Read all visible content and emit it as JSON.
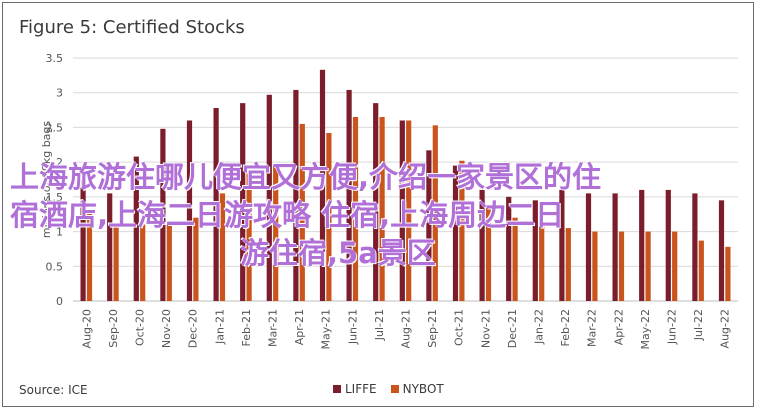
{
  "title": "Figure 5: Certified Stocks",
  "source": "Source: ICE",
  "overlay_text": {
    "line1": "上海旅游住哪儿便宜又方便,介绍一家景区的住",
    "line2": "宿酒店,上海二日游攻略 住宿,上海周边二日",
    "line3": "游住宿,5a景区"
  },
  "colors": {
    "LIFFE": "#7b1d2b",
    "NYBOT": "#c9541c",
    "overlay": "#b070d8"
  },
  "chart_data": {
    "type": "bar",
    "title": "Figure 5: Certified Stocks",
    "ylabel": "millions of 60kg bags",
    "ylim": [
      0,
      3.5
    ],
    "yticks": [
      0,
      0.5,
      1,
      1.5,
      2,
      2.5,
      3,
      3.5
    ],
    "categories": [
      "Aug-20",
      "Sep-20",
      "Oct-20",
      "Nov-20",
      "Dec-20",
      "Jan-21",
      "Feb-21",
      "Mar-21",
      "Apr-21",
      "May-21",
      "Jun-21",
      "Jul-21",
      "Aug-21",
      "Sep-21",
      "Oct-21",
      "Nov-21",
      "Dec-21",
      "Jan-22",
      "Feb-22",
      "Mar-22",
      "Apr-22",
      "May-22",
      "Jun-22",
      "Jul-22",
      "Aug-22"
    ],
    "series": [
      {
        "name": "LIFFE",
        "values": [
          1.75,
          1.55,
          2.08,
          2.48,
          2.6,
          2.78,
          2.85,
          2.97,
          3.04,
          3.33,
          3.04,
          2.85,
          2.6,
          2.17,
          1.95,
          1.6,
          1.5,
          1.45,
          1.6,
          1.55,
          1.55,
          1.6,
          1.6,
          1.55,
          1.45
        ]
      },
      {
        "name": "NYBOT",
        "values": [
          1.3,
          1.1,
          1.1,
          1.1,
          1.2,
          1.55,
          1.85,
          1.95,
          2.55,
          2.42,
          2.65,
          2.65,
          2.6,
          2.53,
          2.02,
          1.35,
          1.2,
          1.1,
          1.05,
          1.0,
          1.0,
          1.0,
          1.0,
          0.87,
          0.78
        ]
      }
    ],
    "legend_position": "bottom",
    "grid": true
  }
}
